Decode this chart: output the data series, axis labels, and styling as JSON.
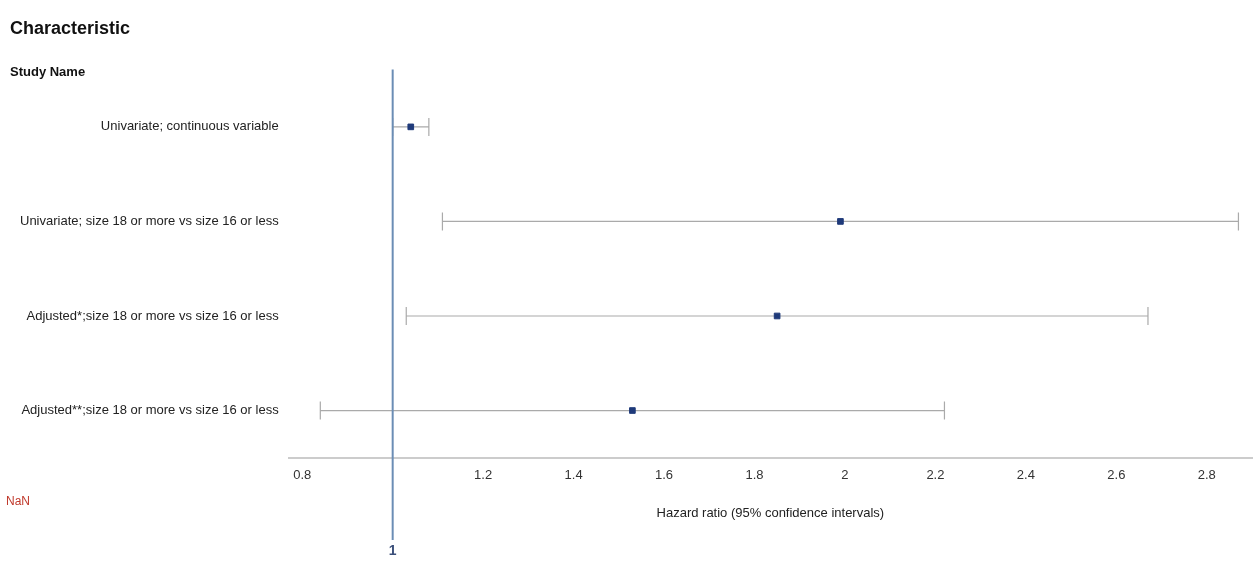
{
  "chart_data": {
    "type": "scatter",
    "orientation": "horizontal",
    "title": "Characteristic",
    "xlabel": "Hazard ratio (95% confidence intervals)",
    "categories": [
      "Univariate; continuous variable",
      "Univariate; size 18 or more vs size 16 or less",
      "Adjusted*;size 18 or more vs size 16 or less",
      "Adjusted**;size 18 or more vs size 16 or less"
    ],
    "series": [
      {
        "color": "#1f3a7a",
        "values": [
          1.04,
          1.99,
          1.85,
          1.53
        ],
        "errors": [
          [
            1.0,
            1.08
          ],
          [
            1.11,
            2.87
          ],
          [
            1.03,
            2.67
          ],
          [
            0.84,
            2.22
          ]
        ]
      }
    ],
    "marker": "square",
    "grid": false,
    "legend": false,
    "xlim": [
      0.77,
      2.9
    ],
    "xticks": [
      0.8,
      1.2,
      1.4,
      1.6,
      1.8,
      2,
      2.2,
      2.4,
      2.6,
      2.8
    ],
    "ref_lines": [
      {
        "axis": "x",
        "value": 1,
        "label": "1",
        "color": "#6b8db5"
      }
    ],
    "annotations": [
      "Study Name",
      "NaN"
    ]
  }
}
